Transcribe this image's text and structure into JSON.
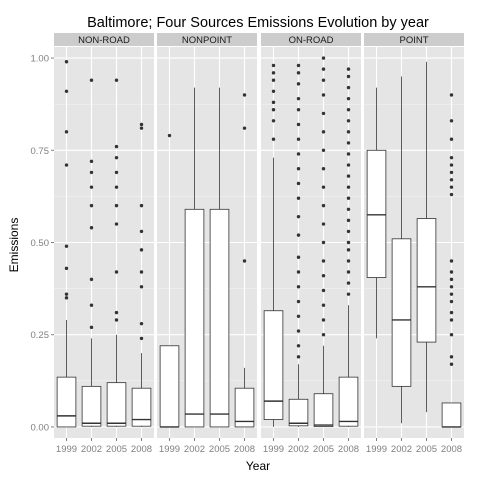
{
  "chart_data": {
    "type": "boxplot",
    "title": "Baltimore; Four Sources Emissions Evolution by year",
    "xlabel": "Year",
    "ylabel": "Emissions",
    "categories": [
      "1999",
      "2002",
      "2005",
      "2008"
    ],
    "ylim": [
      -0.03,
      1.03
    ],
    "yticks": [
      0.0,
      0.25,
      0.5,
      0.75,
      1.0
    ],
    "ytick_labels": [
      "0.00",
      "0.25",
      "0.50",
      "0.75",
      "1.00"
    ],
    "grid": true,
    "facets": [
      {
        "name": "NON-ROAD",
        "boxes": [
          {
            "year": "1999",
            "min": 0.0,
            "q1": 0.0,
            "median": 0.03,
            "q3": 0.135,
            "max": 0.29,
            "outliers": [
              0.35,
              0.36,
              0.43,
              0.49,
              0.71,
              0.8,
              0.91,
              0.99
            ]
          },
          {
            "year": "2002",
            "min": 0.0,
            "q1": 0.002,
            "median": 0.01,
            "q3": 0.11,
            "max": 0.24,
            "outliers": [
              0.27,
              0.33,
              0.4,
              0.54,
              0.6,
              0.65,
              0.69,
              0.72,
              0.94
            ]
          },
          {
            "year": "2005",
            "min": 0.0,
            "q1": 0.002,
            "median": 0.01,
            "q3": 0.12,
            "max": 0.25,
            "outliers": [
              0.29,
              0.31,
              0.42,
              0.55,
              0.6,
              0.65,
              0.69,
              0.73,
              0.76,
              0.94
            ]
          },
          {
            "year": "2008",
            "min": 0.0,
            "q1": 0.002,
            "median": 0.02,
            "q3": 0.105,
            "max": 0.2,
            "outliers": [
              0.24,
              0.28,
              0.38,
              0.42,
              0.48,
              0.53,
              0.6,
              0.81,
              0.82
            ]
          }
        ]
      },
      {
        "name": "NONPOINT",
        "boxes": [
          {
            "year": "1999",
            "min": 0.0,
            "q1": 0.0,
            "median": 0.0,
            "q3": 0.22,
            "max": 0.22,
            "outliers": [
              0.79
            ]
          },
          {
            "year": "2002",
            "min": 0.0,
            "q1": 0.0,
            "median": 0.035,
            "q3": 0.59,
            "max": 0.92,
            "outliers": []
          },
          {
            "year": "2005",
            "min": 0.0,
            "q1": 0.0,
            "median": 0.035,
            "q3": 0.59,
            "max": 0.92,
            "outliers": []
          },
          {
            "year": "2008",
            "min": 0.0,
            "q1": 0.0,
            "median": 0.015,
            "q3": 0.105,
            "max": 0.16,
            "outliers": [
              0.45,
              0.81,
              0.9
            ]
          }
        ]
      },
      {
        "name": "ON-ROAD",
        "boxes": [
          {
            "year": "1999",
            "min": 0.0,
            "q1": 0.02,
            "median": 0.07,
            "q3": 0.315,
            "max": 0.73,
            "outliers": [
              0.78,
              0.83,
              0.86,
              0.88,
              0.91,
              0.94,
              0.96,
              0.98
            ]
          },
          {
            "year": "2002",
            "min": 0.0,
            "q1": 0.003,
            "median": 0.01,
            "q3": 0.075,
            "max": 0.17,
            "outliers": [
              0.19,
              0.22,
              0.26,
              0.3,
              0.34,
              0.38,
              0.42,
              0.46,
              0.52,
              0.57,
              0.62,
              0.66,
              0.7,
              0.74,
              0.78,
              0.82,
              0.86,
              0.89,
              0.93,
              0.96,
              0.98
            ]
          },
          {
            "year": "2005",
            "min": 0.0,
            "q1": 0.001,
            "median": 0.005,
            "q3": 0.09,
            "max": 0.22,
            "outliers": [
              0.25,
              0.29,
              0.33,
              0.37,
              0.41,
              0.45,
              0.5,
              0.55,
              0.6,
              0.65,
              0.7,
              0.75,
              0.8,
              0.85,
              0.9,
              0.94,
              0.97,
              1.0
            ]
          },
          {
            "year": "2008",
            "min": 0.0,
            "q1": 0.002,
            "median": 0.015,
            "q3": 0.135,
            "max": 0.33,
            "outliers": [
              0.36,
              0.39,
              0.42,
              0.45,
              0.48,
              0.5,
              0.53,
              0.56,
              0.59,
              0.62,
              0.65,
              0.68,
              0.71,
              0.74,
              0.77,
              0.8,
              0.83,
              0.86,
              0.89,
              0.92,
              0.95,
              0.97
            ]
          }
        ]
      },
      {
        "name": "POINT",
        "boxes": [
          {
            "year": "1999",
            "min": 0.24,
            "q1": 0.405,
            "median": 0.575,
            "q3": 0.75,
            "max": 0.92,
            "outliers": []
          },
          {
            "year": "2002",
            "min": 0.01,
            "q1": 0.11,
            "median": 0.29,
            "q3": 0.51,
            "max": 0.95,
            "outliers": []
          },
          {
            "year": "2005",
            "min": 0.04,
            "q1": 0.23,
            "median": 0.38,
            "q3": 0.565,
            "max": 0.99,
            "outliers": []
          },
          {
            "year": "2008",
            "min": 0.0,
            "q1": 0.0,
            "median": 0.0,
            "q3": 0.065,
            "max": 0.065,
            "outliers": [
              0.17,
              0.19,
              0.25,
              0.29,
              0.31,
              0.34,
              0.36,
              0.38,
              0.4,
              0.42,
              0.45,
              0.63,
              0.65,
              0.67,
              0.69,
              0.71,
              0.73,
              0.78,
              0.83,
              0.9
            ]
          }
        ]
      }
    ]
  }
}
